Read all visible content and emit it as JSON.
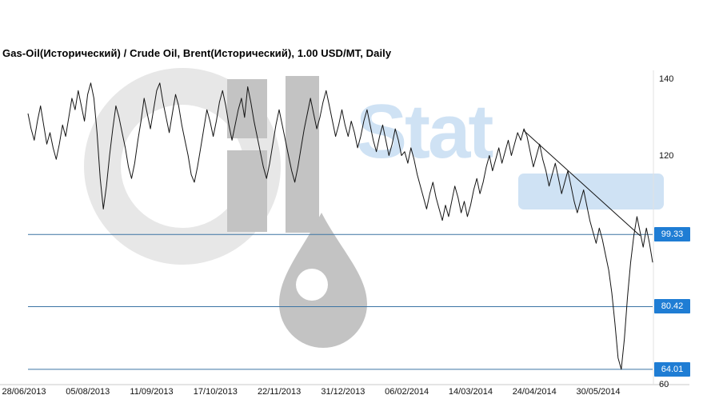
{
  "window": {
    "title": "Gas-Oil(Исторический) / Crude Oil, Brent(Исторический), 1.00 USD/MT, Daily"
  },
  "watermark": {
    "text": "Stat"
  },
  "chart_data": {
    "type": "line",
    "title": "Gas-Oil(Исторический) / Crude Oil, Brent(Исторический), 1.00 USD/MT, Daily",
    "xlabel": "",
    "ylabel": "USD/MT",
    "ylim": [
      60,
      142
    ],
    "grid": false,
    "legend": "none",
    "x_tick_labels": [
      "28/06/2013",
      "05/08/2013",
      "11/09/2013",
      "17/10/2013",
      "22/11/2013",
      "31/12/2013",
      "06/02/2014",
      "14/03/2014",
      "24/04/2014",
      "30/05/2014"
    ],
    "y_tick_labels": [
      {
        "label": "140",
        "value": 140
      },
      {
        "label": "120",
        "value": 120
      },
      {
        "label": "60",
        "value": 60
      }
    ],
    "horizontal_lines": [
      {
        "price": 99.33,
        "label": "99.33"
      },
      {
        "price": 80.42,
        "label": "80.42"
      },
      {
        "price": 64.01,
        "label": "64.01"
      }
    ],
    "trendline": {
      "from_index": 158,
      "from_price": 126.5,
      "to_index": 195,
      "to_price": 99.0
    },
    "series": [
      {
        "name": "Gas-Oil / Crude Oil, Brent (USD/MT, Daily)",
        "values": [
          131,
          127,
          124,
          129,
          133,
          128,
          123,
          126,
          122,
          119,
          123,
          128,
          125,
          130,
          135,
          132,
          137,
          133,
          129,
          136,
          139,
          135,
          126,
          114,
          106,
          112,
          120,
          127,
          133,
          130,
          126,
          122,
          117,
          114,
          118,
          124,
          129,
          135,
          131,
          127,
          132,
          137,
          139,
          134,
          130,
          126,
          131,
          136,
          133,
          128,
          124,
          120,
          115,
          113,
          117,
          122,
          127,
          132,
          129,
          125,
          129,
          134,
          137,
          133,
          128,
          124,
          128,
          132,
          135,
          130,
          138,
          134,
          129,
          125,
          121,
          117,
          114,
          118,
          123,
          128,
          132,
          128,
          124,
          120,
          116,
          113,
          117,
          122,
          127,
          131,
          135,
          131,
          127,
          130,
          134,
          137,
          133,
          129,
          125,
          128,
          132,
          128,
          125,
          129,
          126,
          122,
          125,
          129,
          132,
          128,
          124,
          121,
          125,
          128,
          124,
          120,
          123,
          127,
          124,
          120,
          121,
          118,
          122,
          119,
          115,
          112,
          109,
          106,
          110,
          113,
          109,
          106,
          103,
          107,
          104,
          108,
          112,
          109,
          105,
          108,
          104,
          107,
          111,
          114,
          110,
          113,
          117,
          120,
          116,
          119,
          122,
          118,
          121,
          124,
          120,
          123,
          126,
          124,
          127,
          125,
          121,
          117,
          120,
          123,
          119,
          116,
          112,
          115,
          118,
          114,
          110,
          113,
          116,
          112,
          108,
          105,
          108,
          111,
          107,
          103,
          100,
          97,
          101,
          98,
          94,
          90,
          84,
          76,
          67,
          64,
          72,
          83,
          92,
          99,
          104,
          100,
          96,
          101,
          97,
          92
        ]
      }
    ],
    "colors": {
      "price_line": "#141414",
      "level_line": "#3c74a4",
      "price_flag_bg": "#1f7dd4",
      "price_flag_text": "#ffffff",
      "watermark_gray_light": "#e7e7e7",
      "watermark_gray": "#c3c3c3",
      "watermark_blue": "#cfe2f4"
    }
  }
}
